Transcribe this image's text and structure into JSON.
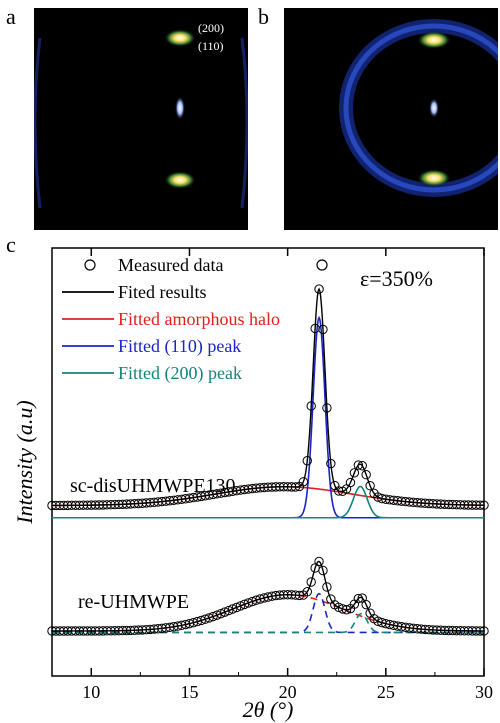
{
  "panel_labels": {
    "a": "a",
    "b": "b",
    "c": "c"
  },
  "pattern_a": {
    "peak_label_1": "(200)",
    "peak_label_2": "(110)",
    "palette": [
      "#000000",
      "#0b1a6e",
      "#2744d6",
      "#ffd34a",
      "#ffffff"
    ]
  },
  "pattern_b": {
    "palette": [
      "#000000",
      "#0b1a6e",
      "#2744d6",
      "#ffd34a",
      "#ffffff"
    ]
  },
  "chart_data": {
    "type": "line",
    "xlabel": "2θ (°)",
    "ylabel": "Intensity (a.u)",
    "xlim": [
      8,
      30
    ],
    "x_ticks": [
      10,
      15,
      20,
      25,
      30
    ],
    "y_ticks": [],
    "annotation": "ε=350%",
    "legend_position": "top-left",
    "legend": [
      {
        "label": "Measured data",
        "color": "#000000",
        "style": "circle"
      },
      {
        "label": "Fited results",
        "color": "#000000",
        "style": "line"
      },
      {
        "label": "Fitted amorphous halo",
        "color": "#e0201b",
        "style": "line"
      },
      {
        "label": "Fitted (110) peak",
        "color": "#1a24c8",
        "style": "line"
      },
      {
        "label": "Fitted (200) peak",
        "color": "#14857a",
        "style": "line"
      }
    ],
    "samples": [
      {
        "name": "sc-disUHMWPE130",
        "baseline": 0.7,
        "amorphous_halo": {
          "center": 19.8,
          "width": 3.5,
          "height": 0.75
        },
        "peak_110": {
          "center": 21.6,
          "width": 0.3,
          "height": 8.0
        },
        "peak_200": {
          "center": 23.7,
          "width": 0.35,
          "height": 1.25
        }
      },
      {
        "name": "re-UHMWPE",
        "baseline": 0.08,
        "amorphous_halo": {
          "center": 20.0,
          "width": 2.8,
          "height": 1.45
        },
        "peak_110": {
          "center": 21.6,
          "width": 0.3,
          "height": 1.55
        },
        "peak_200": {
          "center": 23.75,
          "width": 0.3,
          "height": 0.75
        }
      }
    ]
  }
}
